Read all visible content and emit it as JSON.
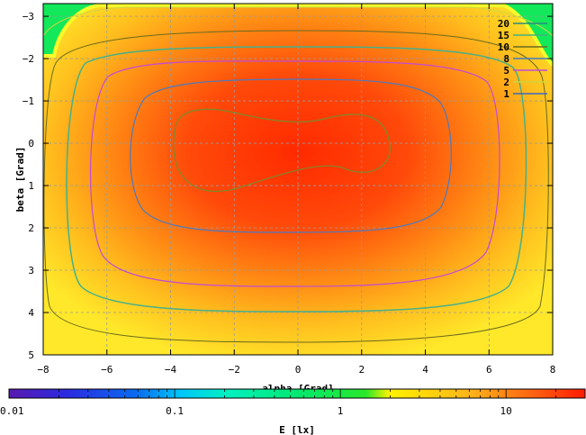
{
  "chart_data": {
    "type": "heatmap",
    "title": "",
    "xlabel": "alpha [Grad]",
    "ylabel": "beta [Grad]",
    "xlim": [
      -8,
      8
    ],
    "ylim": [
      5,
      -3.3
    ],
    "x_ticks": [
      -8,
      -6,
      -4,
      -2,
      0,
      2,
      4,
      6,
      8
    ],
    "y_ticks": [
      -3,
      -2,
      -1,
      0,
      1,
      2,
      3,
      4,
      5
    ],
    "grid": true,
    "legend_position": "top-right",
    "contour_levels": [
      {
        "label": "20",
        "value": 20,
        "color": "#2a8a7a"
      },
      {
        "label": "15",
        "value": 15,
        "color": "#45b07c"
      },
      {
        "label": "10",
        "value": 10,
        "color": "#6a6a1c"
      },
      {
        "label": "8",
        "value": 8,
        "color": "#3f78c8"
      },
      {
        "label": "5",
        "value": 5,
        "color": "#c24ad6"
      },
      {
        "label": "2",
        "value": 2,
        "color": "#cbd63f"
      },
      {
        "label": "1",
        "value": 1,
        "color": "#3a66c2"
      }
    ],
    "colorbar": {
      "label": "E [lx]",
      "scale": "log",
      "range": [
        0.01,
        30
      ],
      "ticks": [
        {
          "label": "0.01",
          "value": 0.01
        },
        {
          "label": "0.1",
          "value": 0.1
        },
        {
          "label": "1",
          "value": 1
        },
        {
          "label": "10",
          "value": 10
        }
      ]
    }
  }
}
